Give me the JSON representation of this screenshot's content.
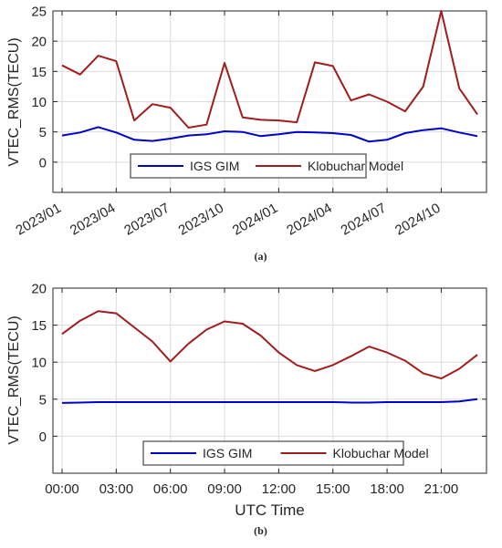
{
  "chart_data": [
    {
      "type": "line",
      "caption": "(a)",
      "ylabel": "VTEC_RMS(TECU)",
      "ylim": [
        -5,
        25
      ],
      "yticks": [
        0,
        5,
        10,
        15,
        20,
        25
      ],
      "grid": true,
      "legend_placement": "bottom-center",
      "categories": [
        "2023/01",
        "2023/02",
        "2023/03",
        "2023/04",
        "2023/05",
        "2023/06",
        "2023/07",
        "2023/08",
        "2023/09",
        "2023/10",
        "2023/11",
        "2023/12",
        "2024/01",
        "2024/02",
        "2024/03",
        "2024/04",
        "2024/05",
        "2024/06",
        "2024/07",
        "2024/08",
        "2024/09",
        "2024/10",
        "2024/11",
        "2024/12"
      ],
      "xtick_labels": [
        "2023/01",
        "2023/04",
        "2023/07",
        "2023/10",
        "2024/01",
        "2024/04",
        "2024/07",
        "2024/10"
      ],
      "series": [
        {
          "name": "IGS GIM",
          "color": "#0000cc",
          "values": [
            4.4,
            4.9,
            5.8,
            4.9,
            3.7,
            3.5,
            3.9,
            4.4,
            4.6,
            5.1,
            5.0,
            4.3,
            4.6,
            5.0,
            4.9,
            4.8,
            4.5,
            3.4,
            3.7,
            4.8,
            5.3,
            5.6,
            4.9,
            4.3
          ]
        },
        {
          "name": "Klobuchar Model",
          "color": "#a11d1d",
          "values": [
            16.0,
            14.5,
            17.6,
            16.7,
            6.9,
            9.6,
            9.0,
            5.7,
            6.2,
            16.4,
            7.4,
            7.0,
            6.9,
            6.6,
            16.5,
            15.9,
            10.2,
            11.2,
            10.0,
            8.4,
            12.5,
            25.0,
            12.2,
            7.9
          ]
        }
      ]
    },
    {
      "type": "line",
      "caption": "(b)",
      "xlabel": "UTC Time",
      "ylabel": "VTEC_RMS(TECU)",
      "ylim": [
        -5,
        20
      ],
      "yticks": [
        0,
        5,
        10,
        15,
        20
      ],
      "grid": true,
      "legend_placement": "bottom-center",
      "x": [
        0,
        1,
        2,
        3,
        4,
        5,
        6,
        7,
        8,
        9,
        10,
        11,
        12,
        13,
        14,
        15,
        16,
        17,
        18,
        19,
        20,
        21,
        22,
        23
      ],
      "xtick_values": [
        0,
        3,
        6,
        9,
        12,
        15,
        18,
        21
      ],
      "xtick_labels": [
        "00:00",
        "03:00",
        "06:00",
        "09:00",
        "12:00",
        "15:00",
        "18:00",
        "21:00"
      ],
      "series": [
        {
          "name": "IGS GIM",
          "color": "#0000cc",
          "values": [
            4.5,
            4.55,
            4.6,
            4.6,
            4.6,
            4.6,
            4.6,
            4.6,
            4.6,
            4.6,
            4.6,
            4.6,
            4.6,
            4.6,
            4.6,
            4.6,
            4.55,
            4.55,
            4.6,
            4.6,
            4.6,
            4.6,
            4.7,
            5.0
          ]
        },
        {
          "name": "Klobuchar Model",
          "color": "#a11d1d",
          "values": [
            13.8,
            15.6,
            16.9,
            16.6,
            14.7,
            12.8,
            10.1,
            12.5,
            14.4,
            15.5,
            15.2,
            13.6,
            11.3,
            9.6,
            8.8,
            9.6,
            10.8,
            12.1,
            11.3,
            10.2,
            8.5,
            7.8,
            9.1,
            11.0
          ]
        }
      ]
    }
  ]
}
